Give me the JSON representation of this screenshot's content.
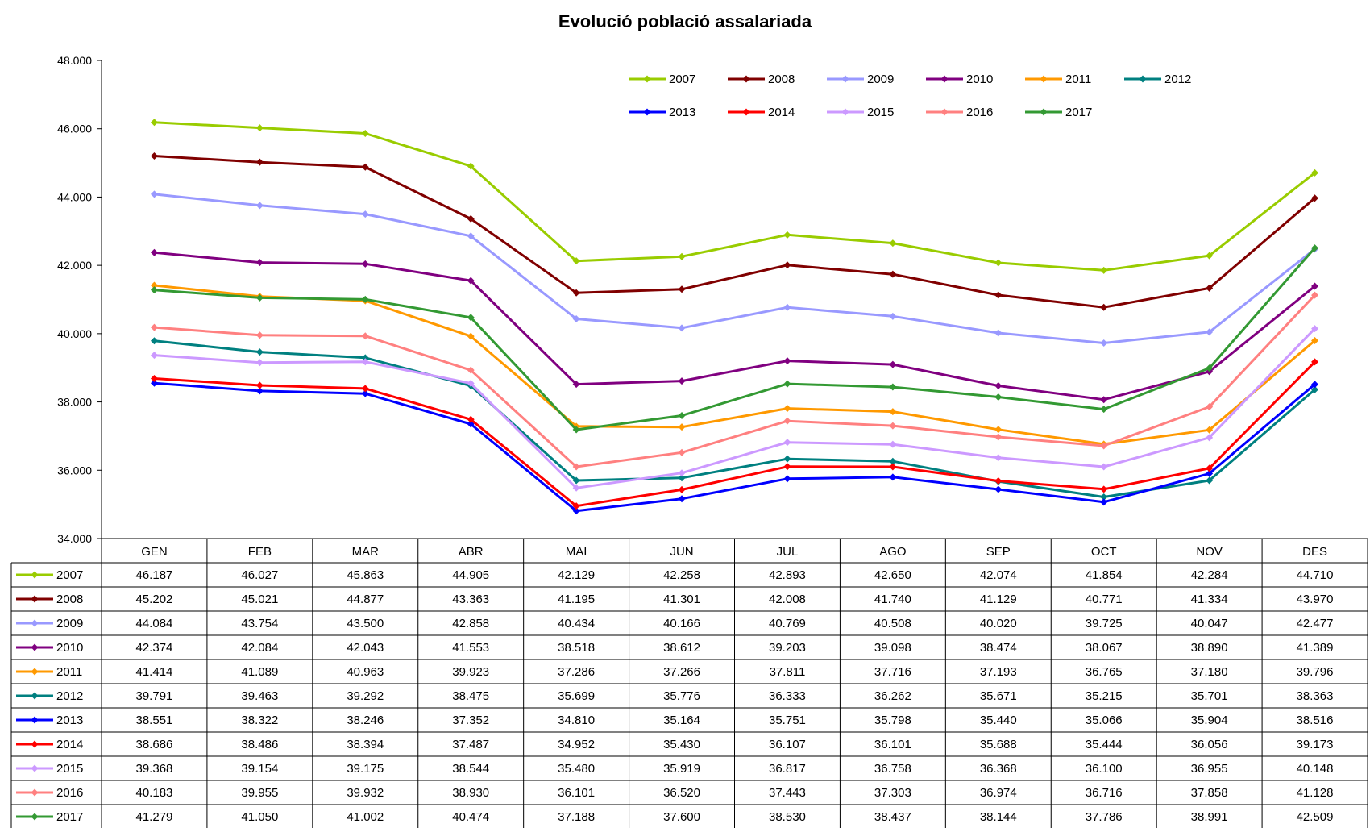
{
  "chart_data": {
    "type": "line",
    "title": "Evolució població assalariada",
    "xlabel": "",
    "ylabel": "",
    "ylim": [
      34000,
      48000
    ],
    "y_ticks": [
      "34.000",
      "36.000",
      "38.000",
      "40.000",
      "42.000",
      "44.000",
      "46.000",
      "48.000"
    ],
    "y_tick_values": [
      34000,
      36000,
      38000,
      40000,
      42000,
      44000,
      46000,
      48000
    ],
    "categories": [
      "GEN",
      "FEB",
      "MAR",
      "ABR",
      "MAI",
      "JUN",
      "JUL",
      "AGO",
      "SEP",
      "OCT",
      "NOV",
      "DES"
    ],
    "grid": false,
    "legend_position": "top-right",
    "series": [
      {
        "name": "2007",
        "color": "#99CC00",
        "values": [
          46187,
          46027,
          45863,
          44905,
          42129,
          42258,
          42893,
          42650,
          42074,
          41854,
          42284,
          44710
        ],
        "labels": [
          "46.187",
          "46.027",
          "45.863",
          "44.905",
          "42.129",
          "42.258",
          "42.893",
          "42.650",
          "42.074",
          "41.854",
          "42.284",
          "44.710"
        ]
      },
      {
        "name": "2008",
        "color": "#800000",
        "values": [
          45202,
          45021,
          44877,
          43363,
          41195,
          41301,
          42008,
          41740,
          41129,
          40771,
          41334,
          43970
        ],
        "labels": [
          "45.202",
          "45.021",
          "44.877",
          "43.363",
          "41.195",
          "41.301",
          "42.008",
          "41.740",
          "41.129",
          "40.771",
          "41.334",
          "43.970"
        ]
      },
      {
        "name": "2009",
        "color": "#9999FF",
        "values": [
          44084,
          43754,
          43500,
          42858,
          40434,
          40166,
          40769,
          40508,
          40020,
          39725,
          40047,
          42477
        ],
        "labels": [
          "44.084",
          "43.754",
          "43.500",
          "42.858",
          "40.434",
          "40.166",
          "40.769",
          "40.508",
          "40.020",
          "39.725",
          "40.047",
          "42.477"
        ]
      },
      {
        "name": "2010",
        "color": "#800080",
        "values": [
          42374,
          42084,
          42043,
          41553,
          38518,
          38612,
          39203,
          39098,
          38474,
          38067,
          38890,
          41389
        ],
        "labels": [
          "42.374",
          "42.084",
          "42.043",
          "41.553",
          "38.518",
          "38.612",
          "39.203",
          "39.098",
          "38.474",
          "38.067",
          "38.890",
          "41.389"
        ]
      },
      {
        "name": "2011",
        "color": "#FF9900",
        "values": [
          41414,
          41089,
          40963,
          39923,
          37286,
          37266,
          37811,
          37716,
          37193,
          36765,
          37180,
          39796
        ],
        "labels": [
          "41.414",
          "41.089",
          "40.963",
          "39.923",
          "37.286",
          "37.266",
          "37.811",
          "37.716",
          "37.193",
          "36.765",
          "37.180",
          "39.796"
        ]
      },
      {
        "name": "2012",
        "color": "#008080",
        "values": [
          39791,
          39463,
          39292,
          38475,
          35699,
          35776,
          36333,
          36262,
          35671,
          35215,
          35701,
          38363
        ],
        "labels": [
          "39.791",
          "39.463",
          "39.292",
          "38.475",
          "35.699",
          "35.776",
          "36.333",
          "36.262",
          "35.671",
          "35.215",
          "35.701",
          "38.363"
        ]
      },
      {
        "name": "2013",
        "color": "#0000FF",
        "values": [
          38551,
          38322,
          38246,
          37352,
          34810,
          35164,
          35751,
          35798,
          35440,
          35066,
          35904,
          38516
        ],
        "labels": [
          "38.551",
          "38.322",
          "38.246",
          "37.352",
          "34.810",
          "35.164",
          "35.751",
          "35.798",
          "35.440",
          "35.066",
          "35.904",
          "38.516"
        ]
      },
      {
        "name": "2014",
        "color": "#FF0000",
        "values": [
          38686,
          38486,
          38394,
          37487,
          34952,
          35430,
          36107,
          36101,
          35688,
          35444,
          36056,
          39173
        ],
        "labels": [
          "38.686",
          "38.486",
          "38.394",
          "37.487",
          "34.952",
          "35.430",
          "36.107",
          "36.101",
          "35.688",
          "35.444",
          "36.056",
          "39.173"
        ]
      },
      {
        "name": "2015",
        "color": "#CC99FF",
        "values": [
          39368,
          39154,
          39175,
          38544,
          35480,
          35919,
          36817,
          36758,
          36368,
          36100,
          36955,
          40148
        ],
        "labels": [
          "39.368",
          "39.154",
          "39.175",
          "38.544",
          "35.480",
          "35.919",
          "36.817",
          "36.758",
          "36.368",
          "36.100",
          "36.955",
          "40.148"
        ]
      },
      {
        "name": "2016",
        "color": "#FF8080",
        "values": [
          40183,
          39955,
          39932,
          38930,
          36101,
          36520,
          37443,
          37303,
          36974,
          36716,
          37858,
          41128
        ],
        "labels": [
          "40.183",
          "39.955",
          "39.932",
          "38.930",
          "36.101",
          "36.520",
          "37.443",
          "37.303",
          "36.974",
          "36.716",
          "37.858",
          "41.128"
        ]
      },
      {
        "name": "2017",
        "color": "#339933",
        "values": [
          41279,
          41050,
          41002,
          40474,
          37188,
          37600,
          38530,
          38437,
          38144,
          37786,
          38991,
          42509
        ],
        "labels": [
          "41.279",
          "41.050",
          "41.002",
          "40.474",
          "37.188",
          "37.600",
          "38.530",
          "38.437",
          "38.144",
          "37.786",
          "38.991",
          "42.509"
        ]
      }
    ]
  }
}
